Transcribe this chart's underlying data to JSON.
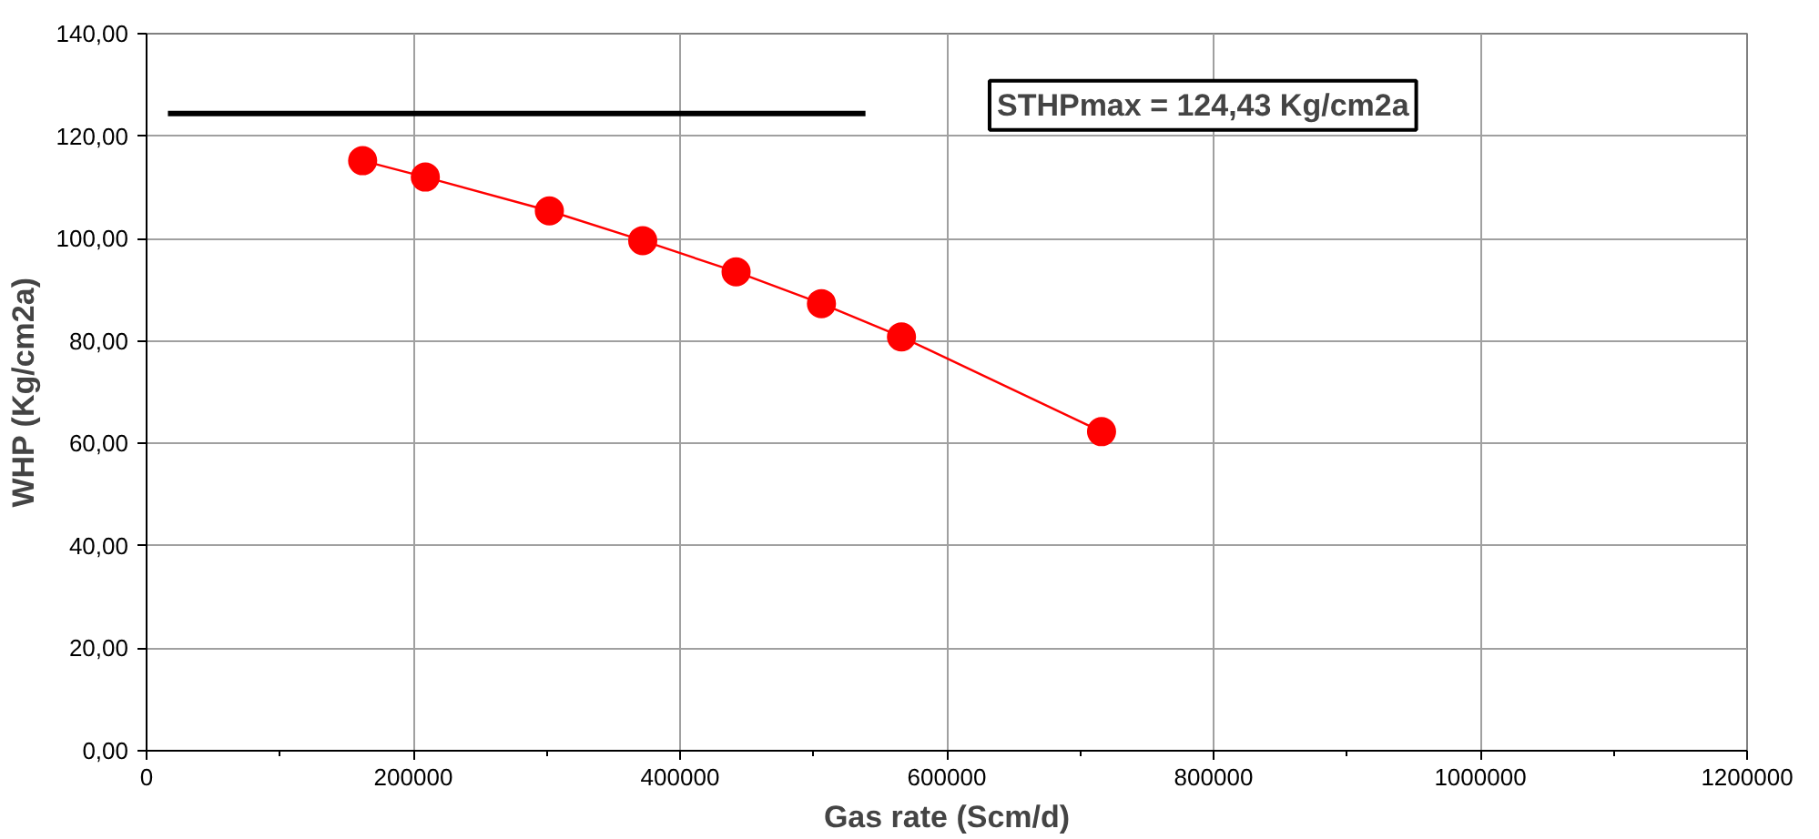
{
  "chart_data": {
    "type": "line",
    "xlabel": "Gas rate (Scm/d)",
    "ylabel": "WHP (Kg/cm2a)",
    "xlim": [
      0,
      1200000
    ],
    "xticks": [
      {
        "value": 0,
        "label": "0"
      },
      {
        "value": 200000,
        "label": "200000"
      },
      {
        "value": 400000,
        "label": "400000"
      },
      {
        "value": 600000,
        "label": "600000"
      },
      {
        "value": 800000,
        "label": "800000"
      },
      {
        "value": 1000000,
        "label": "1000000"
      },
      {
        "value": 1200000,
        "label": "1200000"
      }
    ],
    "ylim": [
      0,
      140
    ],
    "yticks": [
      {
        "value": 0,
        "label": "0,00"
      },
      {
        "value": 20,
        "label": "20,00"
      },
      {
        "value": 40,
        "label": "40,00"
      },
      {
        "value": 60,
        "label": "60,00"
      },
      {
        "value": 80,
        "label": "80,00"
      },
      {
        "value": 100,
        "label": "100,00"
      },
      {
        "value": 120,
        "label": "120,00"
      },
      {
        "value": 140,
        "label": "140,00"
      }
    ],
    "grid": true,
    "series": [
      {
        "color": "#ff0000",
        "marker": "circle",
        "x": [
          162000,
          209000,
          302000,
          372000,
          442000,
          506000,
          566000,
          716000
        ],
        "values": [
          115.2,
          112.0,
          105.4,
          99.6,
          93.5,
          87.3,
          80.8,
          62.3
        ]
      },
      {
        "color": "#000000",
        "marker": "none",
        "x": [
          16000,
          539000
        ],
        "values": [
          124.43,
          124.43
        ]
      }
    ],
    "annotations": [
      "STHPmax = 124,43 Kg/cm2a"
    ]
  }
}
